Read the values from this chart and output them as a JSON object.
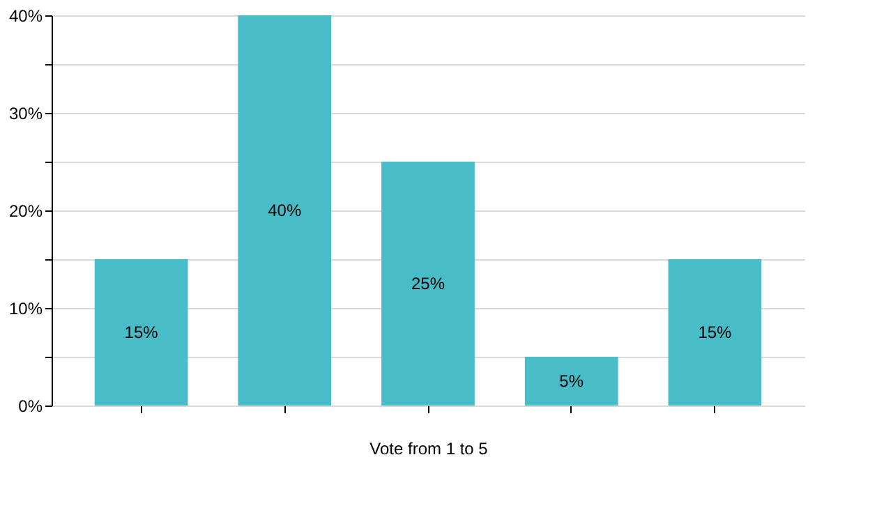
{
  "chart_data": {
    "type": "bar",
    "categories": [
      null,
      null,
      null,
      null,
      null
    ],
    "values": [
      15,
      40,
      25,
      5,
      15
    ],
    "value_labels": [
      "15%",
      "40%",
      "25%",
      "5%",
      "15%"
    ],
    "color": "#48bcc7",
    "xlabel": "Vote from 1 to 5",
    "ylim": [
      0,
      40
    ],
    "yticks": [
      {
        "value": 0,
        "label": "0%"
      },
      {
        "value": 5,
        "label": null
      },
      {
        "value": 10,
        "label": "10%"
      },
      {
        "value": 15,
        "label": null
      },
      {
        "value": 20,
        "label": "20%"
      },
      {
        "value": 25,
        "label": null
      },
      {
        "value": 30,
        "label": "30%"
      },
      {
        "value": 35,
        "label": null
      },
      {
        "value": 40,
        "label": "40%"
      }
    ],
    "grid": true,
    "tick_labels": "y"
  }
}
